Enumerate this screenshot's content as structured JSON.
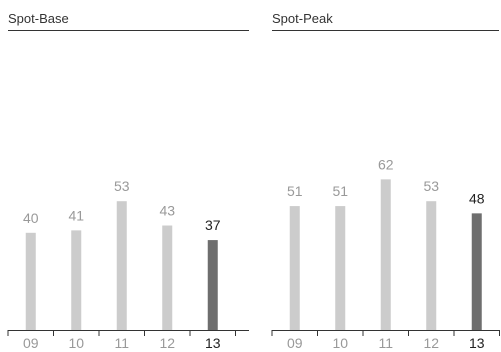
{
  "colors": {
    "bar": "#cccccc",
    "bar_highlight": "#6e6e6e",
    "label": "#999999",
    "label_highlight": "#222222",
    "axis": "#333333"
  },
  "chart_data": [
    {
      "type": "bar",
      "title": "Spot-Base",
      "categories": [
        "09",
        "10",
        "11",
        "12",
        "13"
      ],
      "values": [
        40,
        41,
        53,
        43,
        37
      ],
      "highlight_index": 4,
      "ylim": [
        0,
        100
      ],
      "grid": false,
      "legend": "none"
    },
    {
      "type": "bar",
      "title": "Spot-Peak",
      "categories": [
        "09",
        "10",
        "11",
        "12",
        "13"
      ],
      "values": [
        51,
        51,
        62,
        53,
        48
      ],
      "highlight_index": 4,
      "ylim": [
        0,
        100
      ],
      "grid": false,
      "legend": "none"
    }
  ]
}
